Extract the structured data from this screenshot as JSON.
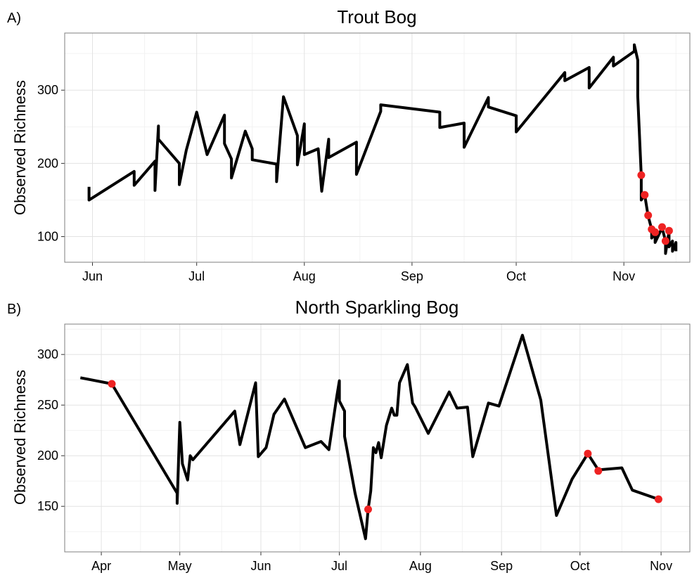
{
  "chart_data": [
    {
      "type": "line",
      "panel_label": "A)",
      "title": "Trout Bog",
      "xlabel": "",
      "ylabel": "Observed Richness",
      "x_unit": "date",
      "year": 2007,
      "xlim": [
        "2007-05-24",
        "2007-11-20"
      ],
      "ylim": [
        65,
        378
      ],
      "x_ticks": [
        {
          "date": "2007-06-01",
          "label": "Jun"
        },
        {
          "date": "2007-07-01",
          "label": "Jul"
        },
        {
          "date": "2007-08-01",
          "label": "Aug"
        },
        {
          "date": "2007-09-01",
          "label": "Sep"
        },
        {
          "date": "2007-10-01",
          "label": "Oct"
        },
        {
          "date": "2007-11-01",
          "label": "Nov"
        }
      ],
      "y_ticks": [
        100,
        200,
        300
      ],
      "grid": true,
      "line_color": "#000000",
      "highlight_color": "#ee2222",
      "series": [
        {
          "points": [
            [
              "2007-05-31",
              168
            ],
            [
              "2007-05-31",
              150
            ],
            [
              "2007-06-13",
              189
            ],
            [
              "2007-06-13",
              170
            ],
            [
              "2007-06-19",
              203
            ],
            [
              "2007-06-19",
              163
            ],
            [
              "2007-06-20",
              251
            ],
            [
              "2007-06-20",
              233
            ],
            [
              "2007-06-26",
              200
            ],
            [
              "2007-06-26",
              171
            ],
            [
              "2007-06-28",
              218
            ],
            [
              "2007-07-01",
              270
            ],
            [
              "2007-07-04",
              212
            ],
            [
              "2007-07-09",
              266
            ],
            [
              "2007-07-09",
              227
            ],
            [
              "2007-07-11",
              206
            ],
            [
              "2007-07-11",
              180
            ],
            [
              "2007-07-15",
              244
            ],
            [
              "2007-07-17",
              220
            ],
            [
              "2007-07-17",
              205
            ],
            [
              "2007-07-24",
              199
            ],
            [
              "2007-07-24",
              175
            ],
            [
              "2007-07-26",
              291
            ],
            [
              "2007-07-30",
              238
            ],
            [
              "2007-07-30",
              198
            ],
            [
              "2007-08-01",
              254
            ],
            [
              "2007-08-01",
              212
            ],
            [
              "2007-08-05",
              220
            ],
            [
              "2007-08-06",
              162
            ],
            [
              "2007-08-08",
              233
            ],
            [
              "2007-08-08",
              208
            ],
            [
              "2007-08-16",
              229
            ],
            [
              "2007-08-16",
              185
            ],
            [
              "2007-08-23",
              271
            ],
            [
              "2007-08-23",
              280
            ],
            [
              "2007-09-09",
              270
            ],
            [
              "2007-09-09",
              249
            ],
            [
              "2007-09-16",
              255
            ],
            [
              "2007-09-16",
              222
            ],
            [
              "2007-09-23",
              290
            ],
            [
              "2007-09-23",
              277
            ],
            [
              "2007-10-01",
              265
            ],
            [
              "2007-10-01",
              243
            ],
            [
              "2007-10-15",
              324
            ],
            [
              "2007-10-15",
              313
            ],
            [
              "2007-10-22",
              331
            ],
            [
              "2007-10-22",
              303
            ],
            [
              "2007-10-29",
              345
            ],
            [
              "2007-10-29",
              333
            ],
            [
              "2007-11-04",
              353
            ],
            [
              "2007-11-04",
              362
            ],
            [
              "2007-11-05",
              341
            ],
            [
              "2007-11-05",
              292
            ],
            [
              "2007-11-06",
              183
            ],
            [
              "2007-11-06",
              150
            ],
            [
              "2007-11-07",
              157
            ],
            [
              "2007-11-08",
              128
            ],
            [
              "2007-11-09",
              110
            ],
            [
              "2007-11-09",
              98
            ],
            [
              "2007-11-10",
              104
            ],
            [
              "2007-11-10",
              92
            ],
            [
              "2007-11-12",
              112
            ],
            [
              "2007-11-13",
              94
            ],
            [
              "2007-11-13",
              77
            ],
            [
              "2007-11-14",
              107
            ],
            [
              "2007-11-14",
              86
            ],
            [
              "2007-11-15",
              94
            ],
            [
              "2007-11-15",
              80
            ],
            [
              "2007-11-16",
              92
            ],
            [
              "2007-11-16",
              80
            ]
          ]
        }
      ],
      "highlight_points": [
        [
          "2007-11-06",
          184
        ],
        [
          "2007-11-07",
          157
        ],
        [
          "2007-11-08",
          129
        ],
        [
          "2007-11-09",
          110
        ],
        [
          "2007-11-10",
          106
        ],
        [
          "2007-11-12",
          113
        ],
        [
          "2007-11-13",
          94
        ],
        [
          "2007-11-14",
          108
        ]
      ]
    },
    {
      "type": "line",
      "panel_label": "B)",
      "title": "North Sparkling Bog",
      "xlabel": "",
      "ylabel": "Observed Richness",
      "x_unit": "date",
      "year": 2007,
      "xlim": [
        "2007-03-18",
        "2007-11-12"
      ],
      "ylim": [
        105,
        330
      ],
      "x_ticks": [
        {
          "date": "2007-04-01",
          "label": "Apr"
        },
        {
          "date": "2007-05-01",
          "label": "May"
        },
        {
          "date": "2007-06-01",
          "label": "Jun"
        },
        {
          "date": "2007-07-01",
          "label": "Jul"
        },
        {
          "date": "2007-08-01",
          "label": "Aug"
        },
        {
          "date": "2007-09-01",
          "label": "Sep"
        },
        {
          "date": "2007-10-01",
          "label": "Oct"
        },
        {
          "date": "2007-11-01",
          "label": "Nov"
        }
      ],
      "y_ticks": [
        150,
        200,
        250,
        300
      ],
      "grid": true,
      "line_color": "#000000",
      "highlight_color": "#ee2222",
      "series": [
        {
          "points": [
            [
              "2007-03-24",
              277
            ],
            [
              "2007-04-05",
              271
            ],
            [
              "2007-04-30",
              163
            ],
            [
              "2007-04-30",
              153
            ],
            [
              "2007-05-01",
              233
            ],
            [
              "2007-05-02",
              192
            ],
            [
              "2007-05-04",
              176
            ],
            [
              "2007-05-05",
              200
            ],
            [
              "2007-05-06",
              196
            ],
            [
              "2007-05-22",
              244
            ],
            [
              "2007-05-24",
              211
            ],
            [
              "2007-05-30",
              272
            ],
            [
              "2007-05-31",
              199
            ],
            [
              "2007-06-03",
              208
            ],
            [
              "2007-06-06",
              241
            ],
            [
              "2007-06-10",
              256
            ],
            [
              "2007-06-18",
              208
            ],
            [
              "2007-06-24",
              214
            ],
            [
              "2007-06-27",
              206
            ],
            [
              "2007-06-30",
              258
            ],
            [
              "2007-07-01",
              274
            ],
            [
              "2007-07-01",
              254
            ],
            [
              "2007-07-03",
              244
            ],
            [
              "2007-07-03",
              219
            ],
            [
              "2007-07-07",
              163
            ],
            [
              "2007-07-11",
              118
            ],
            [
              "2007-07-12",
              147
            ],
            [
              "2007-07-13",
              165
            ],
            [
              "2007-07-14",
              208
            ],
            [
              "2007-07-15",
              203
            ],
            [
              "2007-07-16",
              213
            ],
            [
              "2007-07-17",
              198
            ],
            [
              "2007-07-19",
              230
            ],
            [
              "2007-07-21",
              247
            ],
            [
              "2007-07-22",
              240
            ],
            [
              "2007-07-23",
              240
            ],
            [
              "2007-07-24",
              272
            ],
            [
              "2007-07-27",
              290
            ],
            [
              "2007-07-29",
              252
            ],
            [
              "2007-07-30",
              248
            ],
            [
              "2007-08-04",
              222
            ],
            [
              "2007-08-12",
              263
            ],
            [
              "2007-08-15",
              247
            ],
            [
              "2007-08-19",
              248
            ],
            [
              "2007-08-21",
              199
            ],
            [
              "2007-08-27",
              252
            ],
            [
              "2007-08-31",
              249
            ],
            [
              "2007-09-09",
              319
            ],
            [
              "2007-09-16",
              255
            ],
            [
              "2007-09-22",
              141
            ],
            [
              "2007-09-28",
              177
            ],
            [
              "2007-10-04",
              202
            ],
            [
              "2007-10-08",
              186
            ],
            [
              "2007-10-17",
              188
            ],
            [
              "2007-10-21",
              166
            ],
            [
              "2007-10-31",
              157
            ]
          ]
        }
      ],
      "highlight_points": [
        [
          "2007-04-05",
          271
        ],
        [
          "2007-07-12",
          147
        ],
        [
          "2007-10-04",
          202
        ],
        [
          "2007-10-08",
          185
        ],
        [
          "2007-10-31",
          157
        ]
      ]
    }
  ]
}
